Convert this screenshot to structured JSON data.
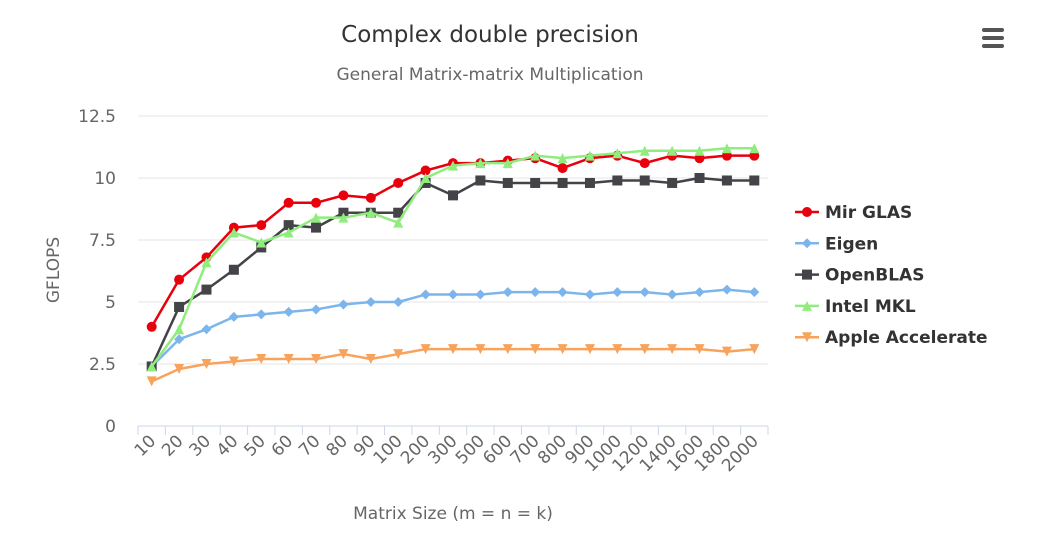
{
  "chart_data": {
    "type": "line",
    "title": "Complex double precision",
    "subtitle": "General Matrix-matrix Multiplication",
    "xlabel": "Matrix Size (m = n = k)",
    "ylabel": "GFLOPS",
    "ylim": [
      0,
      12.5
    ],
    "yticks": [
      "0",
      "2.5",
      "5",
      "7.5",
      "10",
      "12.5"
    ],
    "categories": [
      "10",
      "20",
      "30",
      "40",
      "50",
      "60",
      "70",
      "80",
      "90",
      "100",
      "200",
      "300",
      "500",
      "600",
      "700",
      "800",
      "900",
      "1000",
      "1200",
      "1400",
      "1600",
      "1800",
      "2000"
    ],
    "legend_position": "right",
    "series": [
      {
        "name": "Mir GLAS",
        "color": "#e8000d",
        "marker": "circle",
        "values": [
          4.0,
          5.9,
          6.8,
          8.0,
          8.1,
          9.0,
          9.0,
          9.3,
          9.2,
          9.8,
          10.3,
          10.6,
          10.6,
          10.7,
          10.8,
          10.4,
          10.8,
          10.9,
          10.6,
          10.9,
          10.8,
          10.9,
          10.9
        ]
      },
      {
        "name": "Eigen",
        "color": "#7cb5ec",
        "marker": "diamond",
        "values": [
          2.4,
          3.5,
          3.9,
          4.4,
          4.5,
          4.6,
          4.7,
          4.9,
          5.0,
          5.0,
          5.3,
          5.3,
          5.3,
          5.4,
          5.4,
          5.4,
          5.3,
          5.4,
          5.4,
          5.3,
          5.4,
          5.5,
          5.4
        ]
      },
      {
        "name": "OpenBLAS",
        "color": "#434348",
        "marker": "square",
        "values": [
          2.4,
          4.8,
          5.5,
          6.3,
          7.2,
          8.1,
          8.0,
          8.6,
          8.6,
          8.6,
          9.8,
          9.3,
          9.9,
          9.8,
          9.8,
          9.8,
          9.8,
          9.9,
          9.9,
          9.8,
          10.0,
          9.9,
          9.9
        ]
      },
      {
        "name": "Intel MKL",
        "color": "#90ed7d",
        "marker": "triangle",
        "values": [
          2.4,
          3.9,
          6.6,
          7.8,
          7.4,
          7.8,
          8.4,
          8.4,
          8.6,
          8.2,
          10.0,
          10.5,
          10.6,
          10.6,
          10.9,
          10.8,
          10.9,
          11.0,
          11.1,
          11.1,
          11.1,
          11.2,
          11.2
        ]
      },
      {
        "name": "Apple Accelerate",
        "color": "#f7a35c",
        "marker": "triangle-down",
        "values": [
          1.8,
          2.3,
          2.5,
          2.6,
          2.7,
          2.7,
          2.7,
          2.9,
          2.7,
          2.9,
          3.1,
          3.1,
          3.1,
          3.1,
          3.1,
          3.1,
          3.1,
          3.1,
          3.1,
          3.1,
          3.1,
          3.0,
          3.1
        ]
      }
    ]
  },
  "icons": {
    "menu": "menu-icon"
  }
}
